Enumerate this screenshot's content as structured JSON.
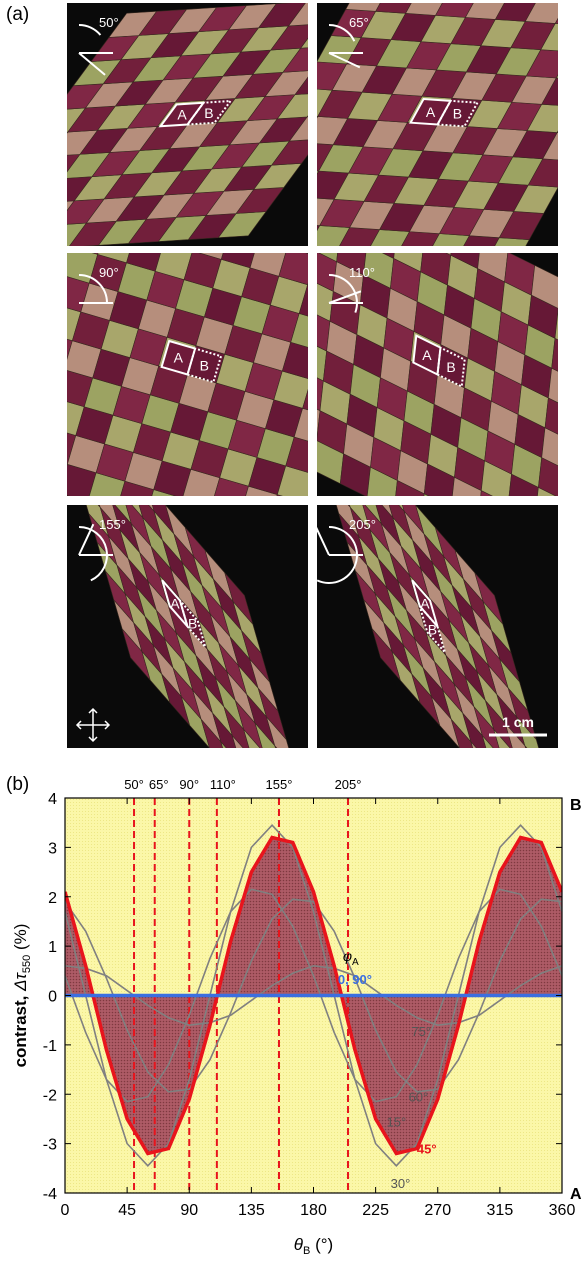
{
  "panel_a": {
    "label": "(a)",
    "photos": [
      {
        "angle": "50°",
        "labels": [
          "A",
          "B"
        ]
      },
      {
        "angle": "65°",
        "labels": [
          "A",
          "B"
        ]
      },
      {
        "angle": "90°",
        "labels": [
          "A",
          "B"
        ]
      },
      {
        "angle": "110°",
        "labels": [
          "A",
          "B"
        ]
      },
      {
        "angle": "155°",
        "labels": [
          "A",
          "B"
        ]
      },
      {
        "angle": "205°",
        "labels": [
          "A",
          "B"
        ]
      }
    ],
    "scale_bar": "1 cm"
  },
  "chart_data": {
    "type": "line",
    "panel_label": "(b)",
    "x_label": [
      "θ",
      "B",
      " (°)"
    ],
    "y_label": [
      "contrast, ",
      "Δτ",
      "550",
      " (%)"
    ],
    "legend_title": [
      "φ",
      "A"
    ],
    "x": [
      0,
      15,
      30,
      45,
      60,
      75,
      90,
      105,
      120,
      135,
      150,
      165,
      180,
      195,
      210,
      225,
      240,
      255,
      270,
      285,
      300,
      315,
      330,
      345,
      360
    ],
    "series": [
      {
        "name": "15°",
        "color": "#808080",
        "values": [
          0.4,
          -0.75,
          -1.7,
          -2.15,
          -2.05,
          -1.4,
          -0.4,
          0.75,
          1.7,
          2.15,
          2.05,
          1.4,
          0.4,
          -0.75,
          -1.7,
          -2.15,
          -2.05,
          -1.4,
          -0.4,
          0.75,
          1.7,
          2.15,
          2.05,
          1.4,
          0.4
        ]
      },
      {
        "name": "30°",
        "color": "#808080",
        "values": [
          1.7,
          0,
          -1.7,
          -3.0,
          -3.45,
          -3.0,
          -1.7,
          0,
          1.7,
          3.0,
          3.45,
          3.0,
          1.7,
          0,
          -1.7,
          -3.0,
          -3.45,
          -3.0,
          -1.7,
          0,
          1.7,
          3.0,
          3.45,
          3.0,
          1.7
        ]
      },
      {
        "name": "60°",
        "color": "#808080",
        "values": [
          1.9,
          1.3,
          0.35,
          -0.7,
          -1.55,
          -1.95,
          -1.9,
          -1.3,
          -0.35,
          0.7,
          1.55,
          1.95,
          1.9,
          1.3,
          0.35,
          -0.7,
          -1.55,
          -1.95,
          -1.9,
          -1.3,
          -0.35,
          0.7,
          1.55,
          1.95,
          1.9
        ]
      },
      {
        "name": "75°",
        "color": "#808080",
        "values": [
          0.6,
          0.55,
          0.4,
          0.1,
          -0.2,
          -0.45,
          -0.6,
          -0.55,
          -0.4,
          -0.1,
          0.2,
          0.45,
          0.6,
          0.55,
          0.4,
          0.1,
          -0.2,
          -0.45,
          -0.6,
          -0.55,
          -0.4,
          -0.1,
          0.2,
          0.45,
          0.6
        ]
      },
      {
        "name": "45°",
        "color": "#e8141c",
        "area": true,
        "values": [
          2.1,
          0.6,
          -1.1,
          -2.5,
          -3.2,
          -3.1,
          -2.1,
          -0.6,
          1.1,
          2.5,
          3.2,
          3.1,
          2.1,
          0.6,
          -1.1,
          -2.5,
          -3.2,
          -3.1,
          -2.1,
          -0.6,
          1.1,
          2.5,
          3.2,
          3.1,
          2.1
        ]
      },
      {
        "name": "0, 90°",
        "color": "#3b6fe0",
        "values": [
          0,
          0,
          0,
          0,
          0,
          0,
          0,
          0,
          0,
          0,
          0,
          0,
          0,
          0,
          0,
          0,
          0,
          0,
          0,
          0,
          0,
          0,
          0,
          0,
          0
        ]
      }
    ],
    "vlines": [
      {
        "value": 50,
        "label": "50°"
      },
      {
        "value": 65,
        "label": "65°"
      },
      {
        "value": 90,
        "label": "90°"
      },
      {
        "value": 110,
        "label": "110°"
      },
      {
        "value": 155,
        "label": "155°"
      },
      {
        "value": 205,
        "label": "205°"
      }
    ],
    "vline_color": "#e8141c",
    "side_labels": {
      "top": "B",
      "bottom": "A"
    },
    "xlim": [
      0,
      360
    ],
    "xticks": [
      0,
      45,
      90,
      135,
      180,
      225,
      270,
      315,
      360
    ],
    "ylim": [
      -4,
      4
    ],
    "yticks": [
      -4,
      -3,
      -2,
      -1,
      0,
      1,
      2,
      3,
      4
    ],
    "background": "#fbf7a8"
  }
}
